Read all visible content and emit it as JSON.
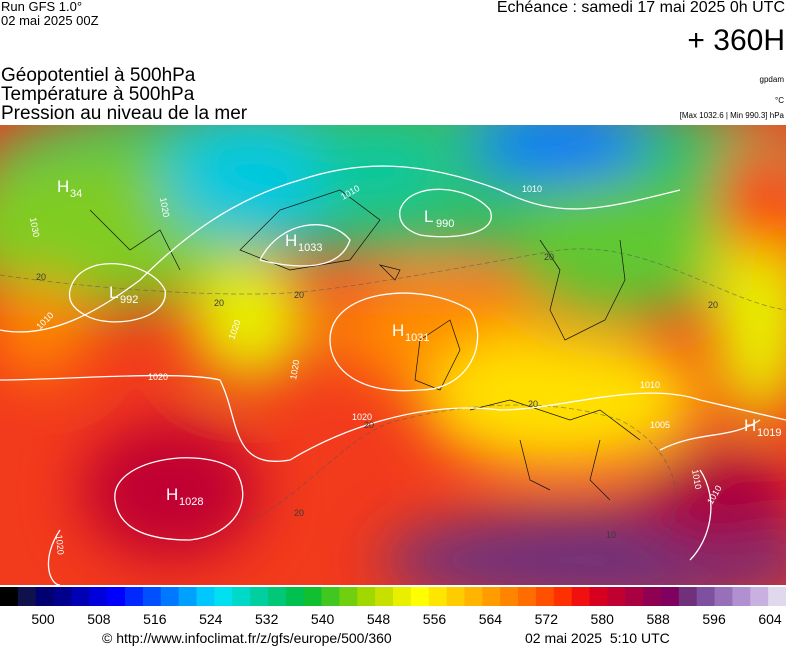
{
  "header": {
    "run": "Run GFS 1.0°",
    "run_date": "02 mai 2025 00Z",
    "valid": "Echéance : samedi 17 mai 2025 0h UTC",
    "lead": "+ 360H"
  },
  "layers": [
    "Géopotentiel à 500hPa",
    "Température à 500hPa",
    "Pression au niveau de la mer"
  ],
  "units": {
    "geopotential": "gpdam",
    "temperature": "°C",
    "pressure": "[Max 1032.6 | Min 990.3] hPa"
  },
  "centers": [
    {
      "type": "H",
      "value": "34"
    },
    {
      "type": "H",
      "value": "1033"
    },
    {
      "type": "L",
      "value": "990"
    },
    {
      "type": "L",
      "value": "992"
    },
    {
      "type": "H",
      "value": "1031"
    },
    {
      "type": "H",
      "value": "1028"
    },
    {
      "type": "H",
      "value": "1019"
    }
  ],
  "isobar_labels": [
    "1030",
    "1020",
    "1020",
    "1010",
    "1010",
    "1020",
    "1010",
    "1020",
    "1005",
    "1010",
    "1010",
    "1010",
    "1020",
    "1020"
  ],
  "temperature_labels": [
    "20",
    "20",
    "20",
    "20",
    "20",
    "20",
    "20",
    "20",
    "10"
  ],
  "colorbar": {
    "colors": [
      "#000000",
      "#10104a",
      "#000070",
      "#00008c",
      "#0000b4",
      "#0000dc",
      "#0000ff",
      "#0028ff",
      "#0050ff",
      "#0078ff",
      "#00a0ff",
      "#00c8ff",
      "#00e0f0",
      "#00d8c8",
      "#00d0a0",
      "#00c878",
      "#00c050",
      "#10c030",
      "#40c820",
      "#70d010",
      "#a0d800",
      "#c8e000",
      "#e8f000",
      "#ffff00",
      "#ffe600",
      "#ffcc00",
      "#ffb400",
      "#ff9c00",
      "#ff8400",
      "#ff6c00",
      "#ff5000",
      "#ff3000",
      "#f01010",
      "#d80020",
      "#c00030",
      "#a80040",
      "#900050",
      "#800060",
      "#70307a",
      "#8050a0",
      "#9870b8",
      "#b090d0",
      "#c8b0e0",
      "#e0d8ec"
    ],
    "ticks": [
      500,
      508,
      516,
      524,
      532,
      540,
      548,
      556,
      564,
      572,
      580,
      588,
      596,
      604
    ]
  },
  "footer": {
    "source": "© http://www.infoclimat.fr/z/gfs/europe/500/360",
    "generated": "02 mai 2025  5:10 UTC"
  }
}
